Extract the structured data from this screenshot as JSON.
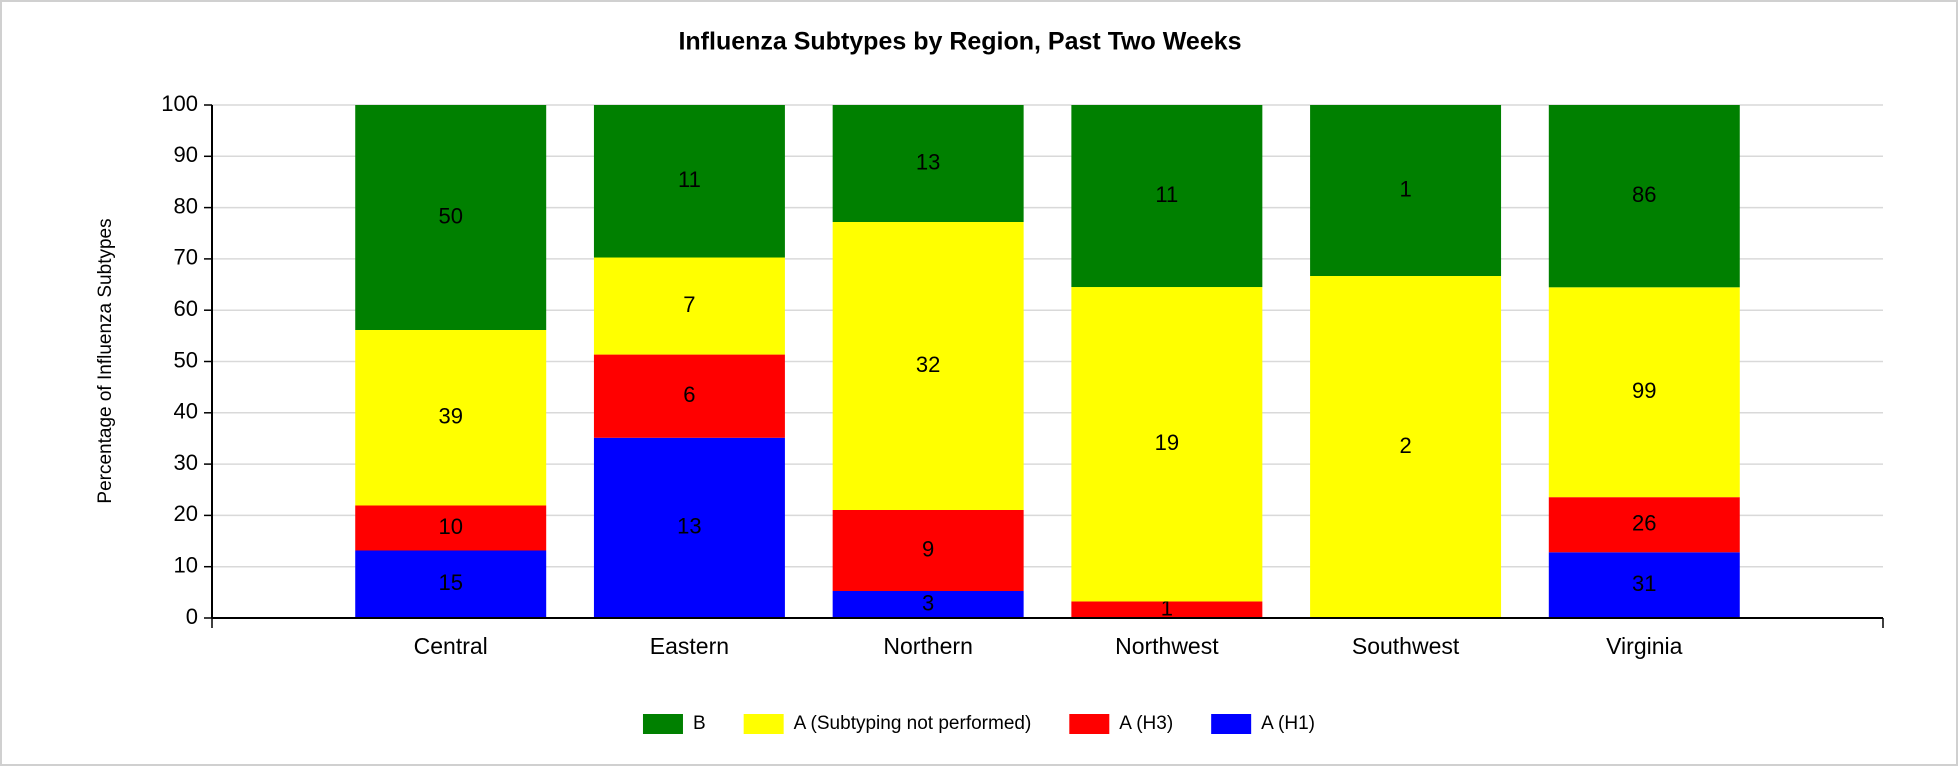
{
  "chart_data": {
    "type": "bar",
    "stacking": "percent",
    "title": "Influenza Subtypes by Region, Past Two Weeks",
    "y_label": "Percentage of Influenza Subtypes",
    "categories": [
      "Central",
      "Eastern",
      "Northern",
      "Northwest",
      "Southwest",
      "Virginia"
    ],
    "series": [
      {
        "name": "A (H1)",
        "color": "#0000ff",
        "values": [
          15,
          13,
          3,
          0,
          0,
          31
        ]
      },
      {
        "name": "A (H3)",
        "color": "#ff0000",
        "values": [
          10,
          6,
          9,
          1,
          0,
          26
        ]
      },
      {
        "name": "A (Subtyping not performed)",
        "color": "#ffff00",
        "values": [
          39,
          7,
          32,
          19,
          2,
          99
        ]
      },
      {
        "name": "B",
        "color": "#008000",
        "values": [
          50,
          11,
          13,
          11,
          1,
          86
        ]
      }
    ],
    "ylim": [
      0,
      100
    ],
    "yticks": [
      0,
      10,
      20,
      30,
      40,
      50,
      60,
      70,
      80,
      90,
      100
    ],
    "grid": true,
    "legend": "bottom"
  }
}
